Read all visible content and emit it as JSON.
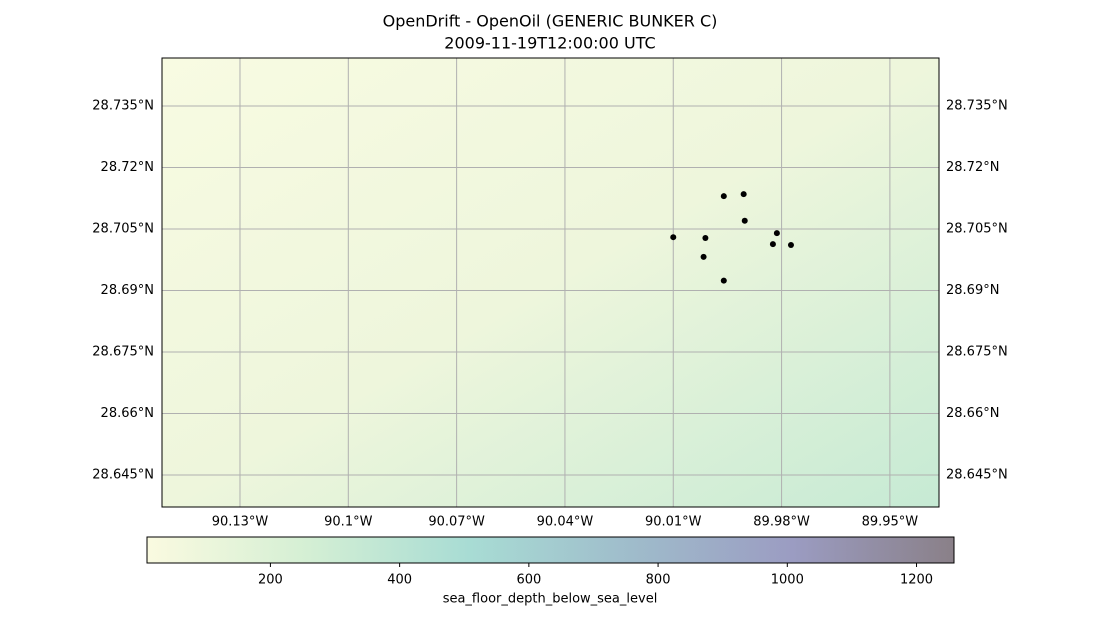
{
  "chart_data": {
    "type": "scatter",
    "title": "OpenDrift - OpenOil (GENERIC BUNKER C)",
    "subtitle": "2009-11-19T12:00:00 UTC",
    "x": [
      -90.01,
      -90.0011,
      -89.996,
      -89.9905,
      -89.9902,
      -89.9813,
      -89.9824,
      -89.9774,
      -90.0016,
      -89.996
    ],
    "values": [
      28.703,
      28.7028,
      28.713,
      28.7135,
      28.707,
      28.704,
      28.7013,
      28.7011,
      28.6982,
      28.6924
    ],
    "color": "#000000",
    "xlim": [
      -90.1516,
      -89.9364
    ],
    "ylim": [
      28.6372,
      28.7467
    ],
    "xticks": [
      {
        "value": -90.13,
        "label": "90.13°W"
      },
      {
        "value": -90.1,
        "label": "90.1°W"
      },
      {
        "value": -90.07,
        "label": "90.07°W"
      },
      {
        "value": -90.04,
        "label": "90.04°W"
      },
      {
        "value": -90.01,
        "label": "90.01°W"
      },
      {
        "value": -89.98,
        "label": "89.98°W"
      },
      {
        "value": -89.95,
        "label": "89.95°W"
      }
    ],
    "yticks": [
      {
        "value": 28.735,
        "label": "28.735°N"
      },
      {
        "value": 28.72,
        "label": "28.72°N"
      },
      {
        "value": 28.705,
        "label": "28.705°N"
      },
      {
        "value": 28.69,
        "label": "28.69°N"
      },
      {
        "value": 28.675,
        "label": "28.675°N"
      },
      {
        "value": 28.66,
        "label": "28.66°N"
      },
      {
        "value": 28.645,
        "label": "28.645°N"
      }
    ],
    "grid": true,
    "colorbar": {
      "label": "sea_floor_depth_below_sea_level",
      "lim": [
        9,
        1258
      ],
      "ticks": [
        200,
        400,
        600,
        800,
        1000,
        1200
      ],
      "colors": [
        "#fafae0",
        "#d4efd4",
        "#a8dcd4",
        "#9fbccb",
        "#9b9cc2",
        "#8a8088"
      ]
    }
  }
}
